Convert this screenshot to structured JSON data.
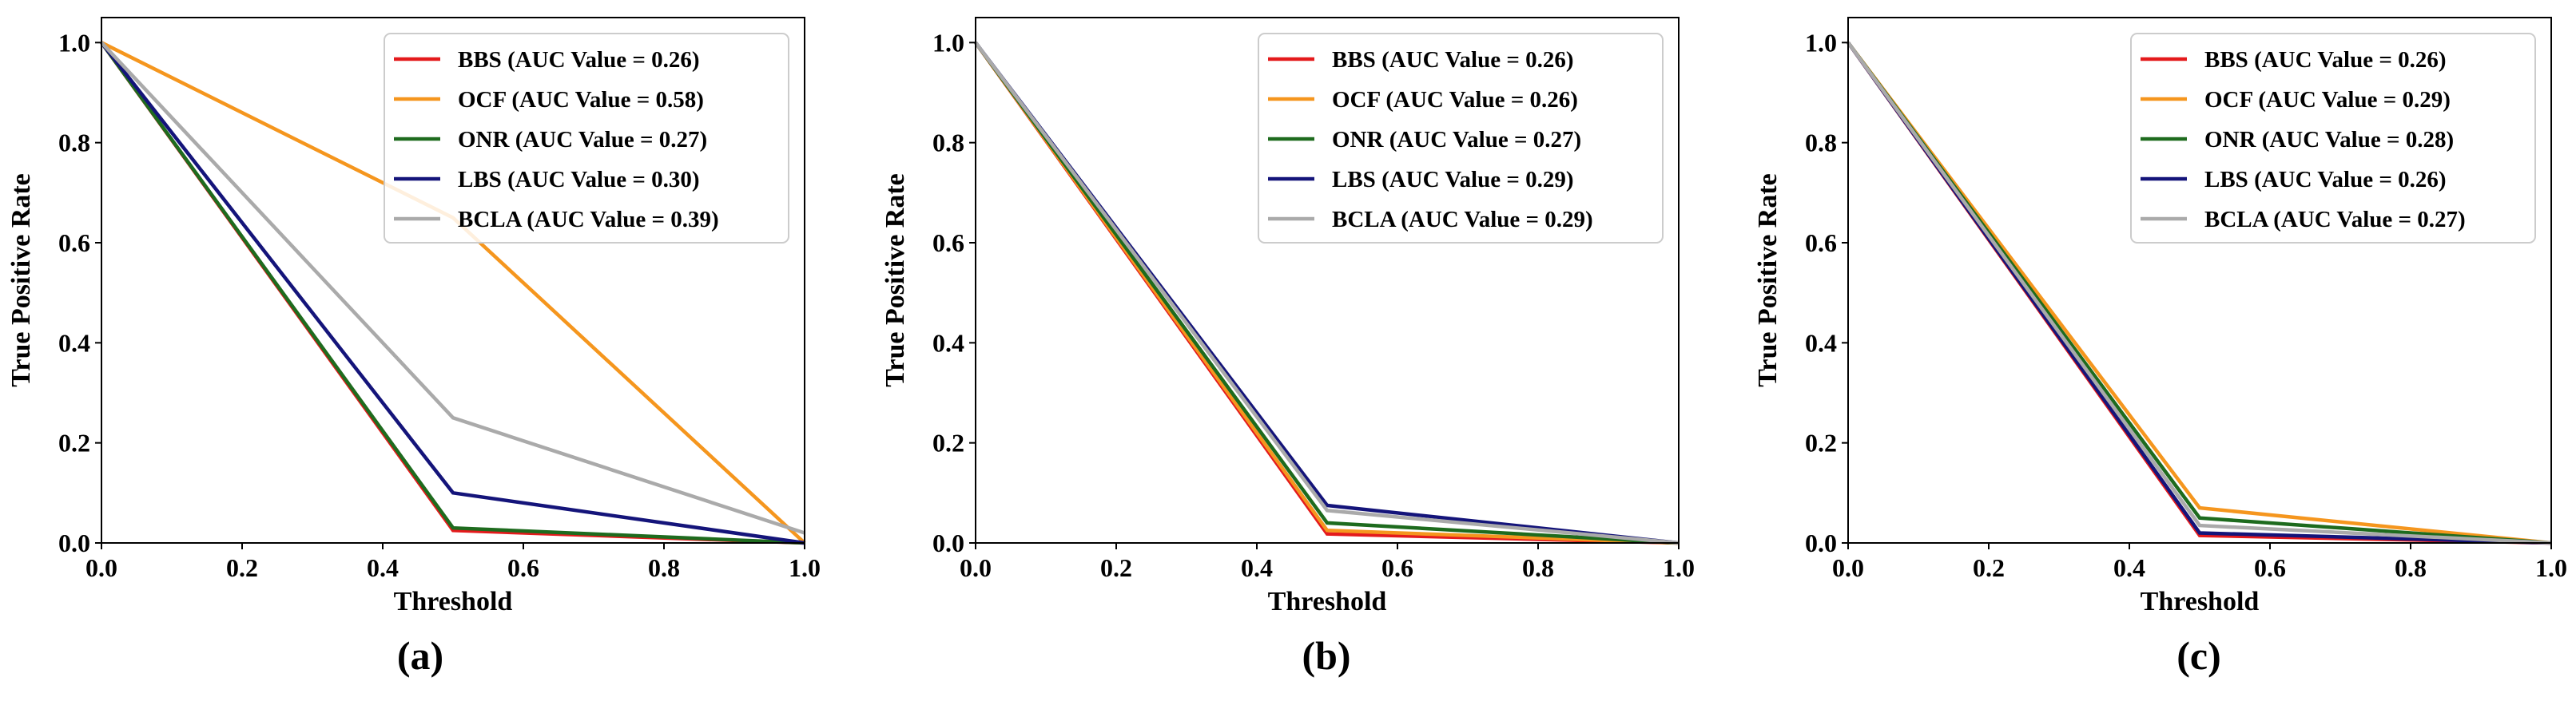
{
  "chart_data": [
    {
      "type": "line",
      "panel_label": "(a)",
      "xlabel": "Threshold",
      "ylabel": "True Positive Rate",
      "xlim": [
        0.0,
        1.0
      ],
      "ylim": [
        0.0,
        1.05
      ],
      "xticks": [
        "0.0",
        "0.2",
        "0.4",
        "0.6",
        "0.8",
        "1.0"
      ],
      "yticks": [
        "0.0",
        "0.2",
        "0.4",
        "0.6",
        "0.8",
        "1.0"
      ],
      "x": [
        0.0,
        0.5,
        1.0
      ],
      "legend_position": "top-right",
      "series": [
        {
          "name": "BBS (AUC Value = 0.26)",
          "color": "#e41a1c",
          "values": [
            1.0,
            0.025,
            0.0
          ]
        },
        {
          "name": "OCF (AUC Value = 0.58)",
          "color": "#f5961e",
          "values": [
            1.0,
            0.65,
            0.0
          ]
        },
        {
          "name": "ONR (AUC Value = 0.27)",
          "color": "#1e6b1e",
          "values": [
            1.0,
            0.03,
            0.0
          ]
        },
        {
          "name": "LBS (AUC Value = 0.30)",
          "color": "#14147a",
          "values": [
            1.0,
            0.1,
            0.0
          ]
        },
        {
          "name": "BCLA (AUC Value = 0.39)",
          "color": "#aaaaaa",
          "values": [
            1.0,
            0.25,
            0.02
          ]
        }
      ]
    },
    {
      "type": "line",
      "panel_label": "(b)",
      "xlabel": "Threshold",
      "ylabel": "True Positive Rate",
      "xlim": [
        0.0,
        1.0
      ],
      "ylim": [
        0.0,
        1.05
      ],
      "xticks": [
        "0.0",
        "0.2",
        "0.4",
        "0.6",
        "0.8",
        "1.0"
      ],
      "yticks": [
        "0.0",
        "0.2",
        "0.4",
        "0.6",
        "0.8",
        "1.0"
      ],
      "x": [
        0.0,
        0.5,
        1.0
      ],
      "legend_position": "top-right",
      "series": [
        {
          "name": "BBS (AUC Value = 0.26)",
          "color": "#e41a1c",
          "values": [
            1.0,
            0.018,
            0.0
          ]
        },
        {
          "name": "OCF (AUC Value = 0.26)",
          "color": "#f5961e",
          "values": [
            1.0,
            0.025,
            0.0
          ]
        },
        {
          "name": "ONR (AUC Value = 0.27)",
          "color": "#1e6b1e",
          "values": [
            1.0,
            0.04,
            0.0
          ]
        },
        {
          "name": "LBS (AUC Value = 0.29)",
          "color": "#14147a",
          "values": [
            1.0,
            0.075,
            0.0
          ]
        },
        {
          "name": "BCLA (AUC Value = 0.29)",
          "color": "#aaaaaa",
          "values": [
            1.0,
            0.065,
            0.0
          ]
        }
      ]
    },
    {
      "type": "line",
      "panel_label": "(c)",
      "xlabel": "Threshold",
      "ylabel": "True Positive Rate",
      "xlim": [
        0.0,
        1.0
      ],
      "ylim": [
        0.0,
        1.05
      ],
      "xticks": [
        "0.0",
        "0.2",
        "0.4",
        "0.6",
        "0.8",
        "1.0"
      ],
      "yticks": [
        "0.0",
        "0.2",
        "0.4",
        "0.6",
        "0.8",
        "1.0"
      ],
      "x": [
        0.0,
        0.5,
        1.0
      ],
      "legend_position": "top-right",
      "series": [
        {
          "name": "BBS (AUC Value = 0.26)",
          "color": "#e41a1c",
          "values": [
            1.0,
            0.015,
            0.0
          ]
        },
        {
          "name": "OCF (AUC Value = 0.29)",
          "color": "#f5961e",
          "values": [
            1.0,
            0.07,
            0.0
          ]
        },
        {
          "name": "ONR (AUC Value = 0.28)",
          "color": "#1e6b1e",
          "values": [
            1.0,
            0.05,
            0.0
          ]
        },
        {
          "name": "LBS (AUC Value = 0.26)",
          "color": "#14147a",
          "values": [
            1.0,
            0.02,
            0.0
          ]
        },
        {
          "name": "BCLA (AUC Value = 0.27)",
          "color": "#aaaaaa",
          "values": [
            1.0,
            0.035,
            0.0
          ]
        }
      ]
    }
  ]
}
